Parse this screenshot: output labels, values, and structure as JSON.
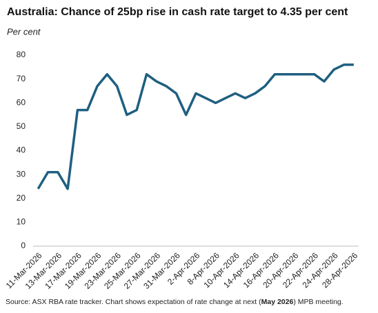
{
  "chart_data": {
    "type": "line",
    "title": "Australia: Chance of 25bp rise in cash rate target to 4.35 per cent",
    "y_label": "Per cent",
    "source": [
      "Source: ASX RBA rate tracker. Chart shows expectation of rate change at next (",
      "May 2026",
      ") MPB meeting."
    ],
    "categories": [
      "11-Mar-2026",
      null,
      "13-Mar-2026",
      null,
      "17-Mar-2026",
      null,
      "19-Mar-2026",
      null,
      "23-Mar-2026",
      null,
      "25-Mar-2026",
      null,
      "27-Mar-2026",
      null,
      "31-Mar-2026",
      null,
      "2-Apr-2026",
      null,
      "8-Apr-2026",
      null,
      "10-Apr-2026",
      null,
      "14-Apr-2026",
      null,
      "16-Apr-2026",
      null,
      "20-Apr-2026",
      null,
      "22-Apr-2026",
      null,
      "24-Apr-2026",
      null,
      "28-Apr-2026"
    ],
    "series": [
      {
        "name": "Chance of 25bp rise",
        "color": "#1f5f80",
        "values": [
          24,
          31,
          31,
          24,
          57,
          57,
          67,
          72,
          67,
          55,
          57,
          72,
          69,
          67,
          64,
          55,
          64,
          62,
          60,
          62,
          64,
          62,
          64,
          67,
          72,
          72,
          72,
          72,
          72,
          69,
          74,
          76,
          76
        ]
      }
    ],
    "ylim": [
      0,
      80
    ],
    "yticks": [
      0,
      10,
      20,
      30,
      40,
      50,
      60,
      70,
      80
    ],
    "grid": false
  }
}
